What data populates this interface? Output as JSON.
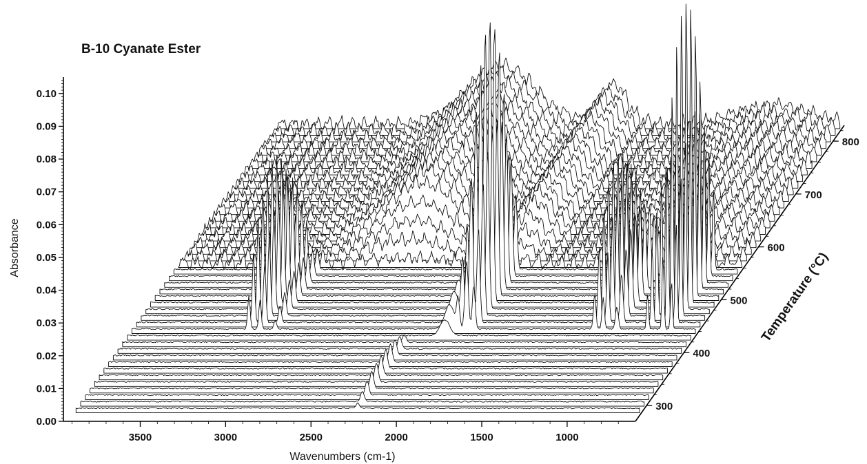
{
  "chart_data": {
    "type": "line",
    "style": "3d-waterfall",
    "title": "B-10 Cyanate Ester",
    "xlabel": "Wavenumbers (cm-1)",
    "ylabel": "Absorbance",
    "zlabel": "Temperature (°C)",
    "x_ticks": [
      "3500",
      "3000",
      "2500",
      "2000",
      "1500",
      "1000"
    ],
    "y_ticks": [
      "0.00",
      "0.01",
      "0.02",
      "0.03",
      "0.04",
      "0.05",
      "0.06",
      "0.07",
      "0.08",
      "0.09",
      "0.10"
    ],
    "z_ticks": [
      "300",
      "400",
      "500",
      "600",
      "700",
      "800"
    ],
    "xlim": [
      3950,
      600
    ],
    "ylim": [
      0.0,
      0.105
    ],
    "zlim": [
      270,
      830
    ],
    "x_reversed": true,
    "series_count": 44,
    "temperature_start": 290,
    "temperature_step": 12.5,
    "peaks": [
      {
        "x": 3235,
        "height": 0.042,
        "width": 10,
        "t_start": 440,
        "t_end": 570
      },
      {
        "x": 3170,
        "height": 0.035,
        "width": 10,
        "t_start": 440,
        "t_end": 570
      },
      {
        "x": 3080,
        "height": 0.01,
        "width": 12,
        "t_start": 440,
        "t_end": 570
      },
      {
        "x": 2270,
        "height": 0.006,
        "width": 15,
        "t_start": 290,
        "t_end": 420
      },
      {
        "x": 2060,
        "height": 0.012,
        "width": 40,
        "t_start": 420,
        "t_end": 560
      },
      {
        "x": 2010,
        "height": 0.035,
        "width": 12,
        "t_start": 440,
        "t_end": 560
      },
      {
        "x": 1960,
        "height": 0.085,
        "width": 14,
        "t_start": 440,
        "t_end": 560
      },
      {
        "x": 1918,
        "height": 0.055,
        "width": 12,
        "t_start": 440,
        "t_end": 560
      },
      {
        "x": 1210,
        "height": 0.045,
        "width": 10,
        "t_start": 440,
        "t_end": 560
      },
      {
        "x": 1160,
        "height": 0.04,
        "width": 10,
        "t_start": 440,
        "t_end": 560
      },
      {
        "x": 1080,
        "height": 0.028,
        "width": 12,
        "t_start": 440,
        "t_end": 560
      },
      {
        "x": 900,
        "height": 0.045,
        "width": 8,
        "t_start": 440,
        "t_end": 560
      },
      {
        "x": 810,
        "height": 0.095,
        "width": 8,
        "t_start": 440,
        "t_end": 560
      },
      {
        "x": 760,
        "height": 0.06,
        "width": 8,
        "t_start": 440,
        "t_end": 560
      }
    ],
    "baseline_features": [
      {
        "x": 2600,
        "height": 0.018,
        "width": 280,
        "t_start": 560,
        "t_end": 830
      },
      {
        "x": 1950,
        "height": 0.012,
        "width": 120,
        "t_start": 560,
        "t_end": 830
      },
      {
        "x": 1000,
        "height": 0.006,
        "width": 300,
        "t_start": 560,
        "t_end": 830
      }
    ],
    "grid": false,
    "legend": "none"
  }
}
